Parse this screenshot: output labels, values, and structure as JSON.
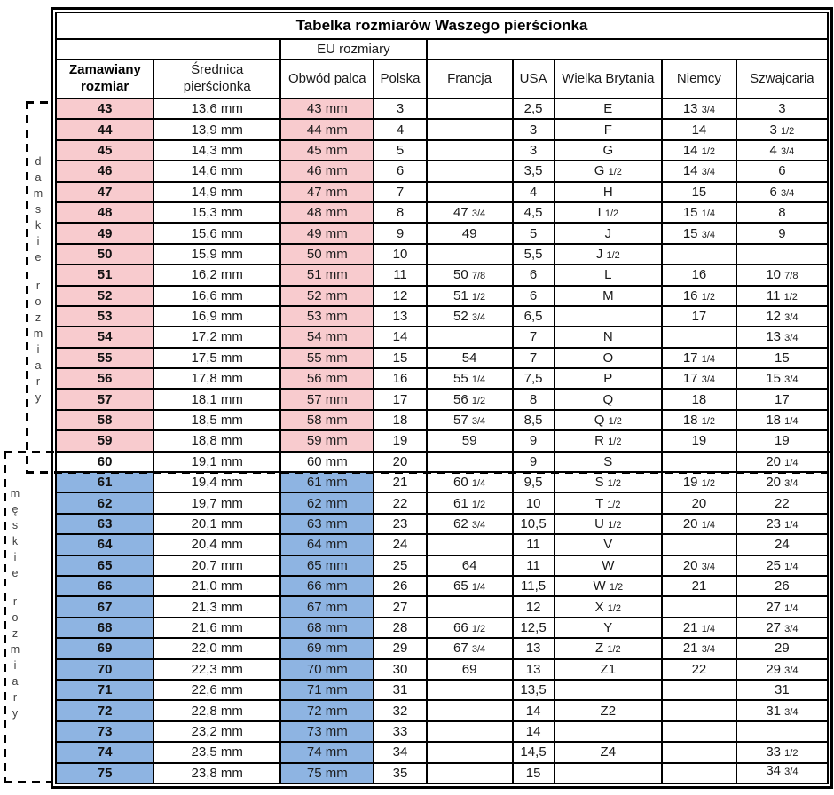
{
  "title": "Tabelka rozmiarów Waszego pierścionka",
  "eu_group_label": "EU rozmiary",
  "columns": [
    "Zamawiany rozmiar",
    "Średnica pierścionka",
    "Obwód palca",
    "Polska",
    "Francja",
    "USA",
    "Wielka Brytania",
    "Niemcy",
    "Szwajcaria"
  ],
  "side_labels": {
    "womens": "damskie rozmiary",
    "mens": "męskie rozmiary"
  },
  "colors": {
    "womens_row": "#F8CBCE",
    "mens_row": "#8EB4E2",
    "border": "#000000"
  },
  "rows": [
    {
      "group": "womens",
      "cells": [
        "43",
        "13,6 mm",
        "43 mm",
        "3",
        "",
        "2,5",
        "E",
        "13 3/4",
        "3"
      ]
    },
    {
      "group": "womens",
      "cells": [
        "44",
        "13,9 mm",
        "44 mm",
        "4",
        "",
        "3",
        "F",
        "14",
        "3 1/2"
      ]
    },
    {
      "group": "womens",
      "cells": [
        "45",
        "14,3 mm",
        "45 mm",
        "5",
        "",
        "3",
        "G",
        "14 1/2",
        "4 3/4"
      ]
    },
    {
      "group": "womens",
      "cells": [
        "46",
        "14,6 mm",
        "46 mm",
        "6",
        "",
        "3,5",
        "G 1/2",
        "14 3/4",
        "6"
      ]
    },
    {
      "group": "womens",
      "cells": [
        "47",
        "14,9 mm",
        "47 mm",
        "7",
        "",
        "4",
        "H",
        "15",
        "6 3/4"
      ]
    },
    {
      "group": "womens",
      "cells": [
        "48",
        "15,3 mm",
        "48 mm",
        "8",
        "47 3/4",
        "4,5",
        "I 1/2",
        "15 1/4",
        "8"
      ]
    },
    {
      "group": "womens",
      "cells": [
        "49",
        "15,6 mm",
        "49 mm",
        "9",
        "49",
        "5",
        "J",
        "15 3/4",
        "9"
      ]
    },
    {
      "group": "womens",
      "cells": [
        "50",
        "15,9 mm",
        "50 mm",
        "10",
        "",
        "5,5",
        "J 1/2",
        "",
        ""
      ]
    },
    {
      "group": "womens",
      "cells": [
        "51",
        "16,2 mm",
        "51 mm",
        "11",
        "50 7/8",
        "6",
        "L",
        "16",
        "10 7/8"
      ]
    },
    {
      "group": "womens",
      "cells": [
        "52",
        "16,6 mm",
        "52 mm",
        "12",
        "51 1/2",
        "6",
        "M",
        "16 1/2",
        "11 1/2"
      ]
    },
    {
      "group": "womens",
      "cells": [
        "53",
        "16,9 mm",
        "53 mm",
        "13",
        "52 3/4",
        "6,5",
        "",
        "17",
        "12 3/4"
      ]
    },
    {
      "group": "womens",
      "cells": [
        "54",
        "17,2 mm",
        "54 mm",
        "14",
        "",
        "7",
        "N",
        "",
        "13 3/4"
      ]
    },
    {
      "group": "womens",
      "cells": [
        "55",
        "17,5 mm",
        "55 mm",
        "15",
        "54",
        "7",
        "O",
        "17 1/4",
        "15"
      ]
    },
    {
      "group": "womens",
      "cells": [
        "56",
        "17,8 mm",
        "56 mm",
        "16",
        "55 1/4",
        "7,5",
        "P",
        "17 3/4",
        "15 3/4"
      ]
    },
    {
      "group": "womens",
      "cells": [
        "57",
        "18,1 mm",
        "57 mm",
        "17",
        "56 1/2",
        "8",
        "Q",
        "18",
        "17"
      ]
    },
    {
      "group": "womens",
      "cells": [
        "58",
        "18,5 mm",
        "58 mm",
        "18",
        "57 3/4",
        "8,5",
        "Q 1/2",
        "18 1/2",
        "18 1/4"
      ]
    },
    {
      "group": "womens",
      "cells": [
        "59",
        "18,8 mm",
        "59 mm",
        "19",
        "59",
        "9",
        "R 1/2",
        "19",
        "19"
      ]
    },
    {
      "group": "neutral",
      "cells": [
        "60",
        "19,1 mm",
        "60 mm",
        "20",
        "",
        "9",
        "S",
        "",
        "20 1/4"
      ]
    },
    {
      "group": "mens",
      "cells": [
        "61",
        "19,4 mm",
        "61 mm",
        "21",
        "60 1/4",
        "9,5",
        "S 1/2",
        "19 1/2",
        "20 3/4"
      ]
    },
    {
      "group": "mens",
      "cells": [
        "62",
        "19,7 mm",
        "62 mm",
        "22",
        "61 1/2",
        "10",
        "T 1/2",
        "20",
        "22"
      ]
    },
    {
      "group": "mens",
      "cells": [
        "63",
        "20,1 mm",
        "63 mm",
        "23",
        "62 3/4",
        "10,5",
        "U 1/2",
        "20 1/4",
        "23 1/4"
      ]
    },
    {
      "group": "mens",
      "cells": [
        "64",
        "20,4 mm",
        "64 mm",
        "24",
        "",
        "11",
        "V",
        "",
        "24"
      ]
    },
    {
      "group": "mens",
      "cells": [
        "65",
        "20,7 mm",
        "65 mm",
        "25",
        "64",
        "11",
        "W",
        "20 3/4",
        "25 1/4"
      ]
    },
    {
      "group": "mens",
      "cells": [
        "66",
        "21,0 mm",
        "66 mm",
        "26",
        "65 1/4",
        "11,5",
        "W 1/2",
        "21",
        "26"
      ]
    },
    {
      "group": "mens",
      "cells": [
        "67",
        "21,3 mm",
        "67 mm",
        "27",
        "",
        "12",
        "X 1/2",
        "",
        "27 1/4"
      ]
    },
    {
      "group": "mens",
      "cells": [
        "68",
        "21,6 mm",
        "68 mm",
        "28",
        "66 1/2",
        "12,5",
        "Y",
        "21 1/4",
        "27 3/4"
      ]
    },
    {
      "group": "mens",
      "cells": [
        "69",
        "22,0 mm",
        "69 mm",
        "29",
        "67 3/4",
        "13",
        "Z 1/2",
        "21 3/4",
        "29"
      ]
    },
    {
      "group": "mens",
      "cells": [
        "70",
        "22,3 mm",
        "70 mm",
        "30",
        "69",
        "13",
        "Z1",
        "22",
        "29 3/4"
      ]
    },
    {
      "group": "mens",
      "cells": [
        "71",
        "22,6 mm",
        "71 mm",
        "31",
        "",
        "13,5",
        "",
        "",
        "31"
      ]
    },
    {
      "group": "mens",
      "cells": [
        "72",
        "22,8 mm",
        "72 mm",
        "32",
        "",
        "14",
        "Z2",
        "",
        "31 3/4"
      ]
    },
    {
      "group": "mens",
      "cells": [
        "73",
        "23,2 mm",
        "73 mm",
        "33",
        "",
        "14",
        "",
        "",
        ""
      ]
    },
    {
      "group": "mens",
      "cells": [
        "74",
        "23,5 mm",
        "74 mm",
        "34",
        "",
        "14,5",
        "Z4",
        "",
        "33 1/2"
      ]
    },
    {
      "group": "mens",
      "cells": [
        "75",
        "23,8 mm",
        "75 mm",
        "35",
        "",
        "15",
        "",
        "",
        "34 3/4"
      ],
      "top_align_cols": [
        8
      ]
    }
  ]
}
